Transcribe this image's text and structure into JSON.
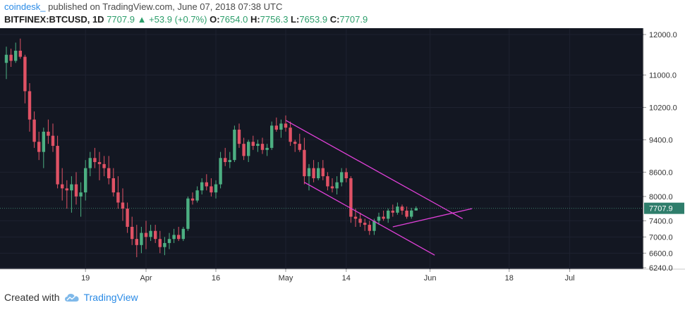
{
  "header": {
    "author": "coindesk_",
    "published": "published on TradingView.com, June 07, 2018 07:38 UTC",
    "symbol": "BITFINEX:BTCUSD, 1D",
    "last": "7707.9",
    "change": "+53.9 (+0.7%)",
    "o_label": "O:",
    "o": "7654.0",
    "h_label": "H:",
    "h": "7756.3",
    "l_label": "L:",
    "l": "7653.9",
    "c_label": "C:",
    "c": "7707.9"
  },
  "footer": {
    "created_with": "Created with",
    "brand": "TradingView"
  },
  "colors": {
    "background": "#131722",
    "up": "#4caf82",
    "down": "#e05265",
    "channel": "#e040d8",
    "price_line": "#3a7a6a",
    "axis_text": "#333333"
  },
  "chart_data": {
    "type": "candlestick",
    "y_ticks": [
      "12000.0",
      "11000.0",
      "10200.0",
      "9400.0",
      "8600.0",
      "8000.0",
      "7400.0",
      "7000.0",
      "6600.0",
      "6240.0"
    ],
    "x_ticks": [
      {
        "label": "19",
        "index": 17
      },
      {
        "label": "Apr",
        "index": 30
      },
      {
        "label": "16",
        "index": 45
      },
      {
        "label": "May",
        "index": 60
      },
      {
        "label": "14",
        "index": 73
      },
      {
        "label": "Jun",
        "index": 91
      },
      {
        "label": "18",
        "index": 108
      },
      {
        "label": "Jul",
        "index": 121
      }
    ],
    "last_price": 7707.9,
    "last_price_label": "7707.9",
    "candles": [
      [
        11300,
        11700,
        10900,
        11500
      ],
      [
        11500,
        11650,
        11200,
        11350
      ],
      [
        11350,
        11800,
        11300,
        11600
      ],
      [
        11600,
        11900,
        11400,
        11450
      ],
      [
        11450,
        11500,
        10300,
        10600
      ],
      [
        10600,
        10800,
        9600,
        9900
      ],
      [
        9900,
        10100,
        9200,
        9350
      ],
      [
        9350,
        9600,
        8900,
        9100
      ],
      [
        9100,
        9700,
        8700,
        9600
      ],
      [
        9600,
        9900,
        9300,
        9500
      ],
      [
        9500,
        9800,
        9100,
        9250
      ],
      [
        9250,
        9500,
        8200,
        8300
      ],
      [
        8300,
        8700,
        7900,
        8200
      ],
      [
        8200,
        8400,
        7700,
        8150
      ],
      [
        8150,
        8500,
        7600,
        8300
      ],
      [
        8300,
        8600,
        7800,
        8000
      ],
      [
        8000,
        8350,
        7500,
        8100
      ],
      [
        8100,
        8900,
        7900,
        8700
      ],
      [
        8700,
        9100,
        8500,
        8950
      ],
      [
        8950,
        9200,
        8700,
        8850
      ],
      [
        8850,
        9100,
        8400,
        8800
      ],
      [
        8800,
        9000,
        8500,
        8700
      ],
      [
        8700,
        9000,
        8300,
        8450
      ],
      [
        8450,
        8700,
        8000,
        8100
      ],
      [
        8100,
        8500,
        7700,
        7850
      ],
      [
        7850,
        8200,
        7400,
        7700
      ],
      [
        7700,
        7850,
        7100,
        7250
      ],
      [
        7250,
        7500,
        6800,
        6950
      ],
      [
        6950,
        7300,
        6500,
        6800
      ],
      [
        6800,
        7250,
        6600,
        7100
      ],
      [
        7100,
        7400,
        6700,
        7000
      ],
      [
        7000,
        7300,
        6900,
        7150
      ],
      [
        7150,
        7300,
        6850,
        6950
      ],
      [
        6950,
        7150,
        6600,
        6750
      ],
      [
        6750,
        7000,
        6550,
        6850
      ],
      [
        6850,
        7100,
        6700,
        6950
      ],
      [
        6950,
        7200,
        6850,
        7050
      ],
      [
        7050,
        7250,
        6900,
        6950
      ],
      [
        6950,
        7250,
        6900,
        7200
      ],
      [
        7200,
        8000,
        7150,
        7950
      ],
      [
        7950,
        8100,
        7800,
        7900
      ],
      [
        7900,
        8250,
        7850,
        8150
      ],
      [
        8150,
        8450,
        8050,
        8350
      ],
      [
        8350,
        8550,
        8150,
        8250
      ],
      [
        8250,
        8450,
        8000,
        8100
      ],
      [
        8100,
        8400,
        7950,
        8300
      ],
      [
        8300,
        9100,
        8200,
        8950
      ],
      [
        8950,
        9200,
        8750,
        8850
      ],
      [
        8850,
        9100,
        8700,
        8900
      ],
      [
        8900,
        9750,
        8850,
        9650
      ],
      [
        9650,
        9800,
        9200,
        9300
      ],
      [
        9300,
        9450,
        8900,
        9000
      ],
      [
        9000,
        9400,
        8850,
        9350
      ],
      [
        9350,
        9500,
        9150,
        9250
      ],
      [
        9250,
        9400,
        9100,
        9300
      ],
      [
        9300,
        9450,
        9050,
        9150
      ],
      [
        9150,
        9300,
        9000,
        9200
      ],
      [
        9200,
        9850,
        9150,
        9750
      ],
      [
        9750,
        9950,
        9600,
        9650
      ],
      [
        9650,
        9900,
        9450,
        9800
      ],
      [
        9800,
        10000,
        9600,
        9700
      ],
      [
        9700,
        9850,
        9250,
        9350
      ],
      [
        9350,
        9400,
        9100,
        9300
      ],
      [
        9300,
        9550,
        9100,
        9150
      ],
      [
        9150,
        9450,
        8300,
        8500
      ],
      [
        8500,
        8800,
        8150,
        8700
      ],
      [
        8700,
        8900,
        8350,
        8450
      ],
      [
        8450,
        8850,
        8400,
        8700
      ],
      [
        8700,
        8900,
        8400,
        8500
      ],
      [
        8500,
        8600,
        8150,
        8250
      ],
      [
        8250,
        8450,
        8100,
        8200
      ],
      [
        8200,
        8500,
        8050,
        8350
      ],
      [
        8350,
        8700,
        8250,
        8600
      ],
      [
        8600,
        8700,
        8350,
        8450
      ],
      [
        8450,
        8500,
        7350,
        7500
      ],
      [
        7500,
        7700,
        7250,
        7450
      ],
      [
        7450,
        7600,
        7250,
        7350
      ],
      [
        7350,
        7450,
        7150,
        7300
      ],
      [
        7300,
        7400,
        7050,
        7150
      ],
      [
        7150,
        7450,
        7050,
        7400
      ],
      [
        7400,
        7600,
        7300,
        7500
      ],
      [
        7500,
        7650,
        7400,
        7450
      ],
      [
        7450,
        7700,
        7350,
        7650
      ],
      [
        7650,
        7800,
        7500,
        7600
      ],
      [
        7600,
        7850,
        7550,
        7750
      ],
      [
        7750,
        7800,
        7550,
        7650
      ],
      [
        7650,
        7750,
        7450,
        7500
      ],
      [
        7500,
        7720,
        7450,
        7654
      ],
      [
        7654,
        7756.3,
        7653.9,
        7707.9
      ]
    ],
    "trendlines": [
      {
        "name": "",
        "from": [
          60,
          9880
        ],
        "to": [
          98,
          7450
        ]
      },
      {
        "name": "",
        "from": [
          64,
          8350
        ],
        "to": [
          92,
          6550
        ]
      },
      {
        "name": "",
        "from": [
          83,
          7250
        ],
        "to": [
          100,
          7700
        ]
      }
    ]
  }
}
